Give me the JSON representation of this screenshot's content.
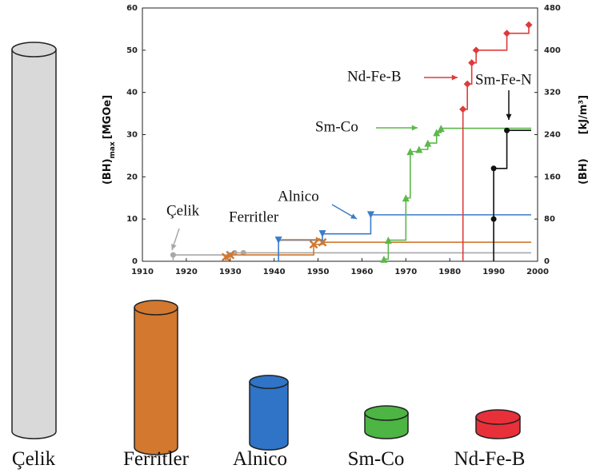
{
  "chart_data": {
    "type": "step",
    "ylabel": {
      "main": "(BH)",
      "sub": "max",
      "unit": "[MGOe]"
    },
    "y2label": {
      "main": "(BH)",
      "unit": "[kJ/m³]"
    },
    "xlim": [
      1910,
      2000
    ],
    "xticks": [
      1910,
      1920,
      1930,
      1940,
      1950,
      1960,
      1970,
      1980,
      1990,
      2000
    ],
    "ylim": [
      0,
      60
    ],
    "yticks": [
      0,
      10,
      20,
      30,
      40,
      50,
      60
    ],
    "y2lim": [
      0,
      480
    ],
    "y2ticks": [
      0,
      80,
      160,
      240,
      320,
      400,
      480
    ],
    "series": [
      {
        "name": "Çelik",
        "color": "#a8a8a8",
        "marker": "circle",
        "x": [
          1917,
          1930,
          1931,
          1933
        ],
        "values": [
          1.5,
          1.5,
          2,
          2
        ]
      },
      {
        "name": "Ferritler",
        "color": "#d2782f",
        "marker": "cross",
        "x": [
          1929,
          1930,
          1949,
          1951
        ],
        "values": [
          1,
          1.5,
          4,
          4.5
        ]
      },
      {
        "name": "Alnico",
        "color": "#3a7cc8",
        "marker": "triangle-down",
        "x": [
          1941,
          1951,
          1962
        ],
        "values": [
          5,
          6.5,
          11
        ]
      },
      {
        "name": "Sm-Co",
        "color": "#5cb84a",
        "marker": "triangle-up",
        "x": [
          1965,
          1966,
          1970,
          1971,
          1973,
          1975,
          1977,
          1978
        ],
        "values": [
          0.5,
          5,
          15,
          26,
          26.5,
          28,
          30.5,
          31.5
        ]
      },
      {
        "name": "Nd-Fe-B",
        "color": "#e03a3a",
        "marker": "diamond",
        "x": [
          1983,
          1984,
          1985,
          1986,
          1993,
          1998
        ],
        "values": [
          36,
          42,
          47,
          50,
          54,
          56
        ]
      },
      {
        "name": "Sm-Fe-N",
        "color": "#111111",
        "marker": "circle",
        "x": [
          1990,
          1990,
          1993
        ],
        "values": [
          10,
          22,
          31
        ]
      }
    ]
  },
  "magnet_comparison": {
    "labels": [
      "Çelik",
      "Ferritler",
      "Alnico",
      "Sm-Co",
      "Nd-Fe-B"
    ],
    "colors": [
      "#d9d9d9",
      "#d2782f",
      "#2f74c6",
      "#4cb543",
      "#e8303a"
    ]
  }
}
